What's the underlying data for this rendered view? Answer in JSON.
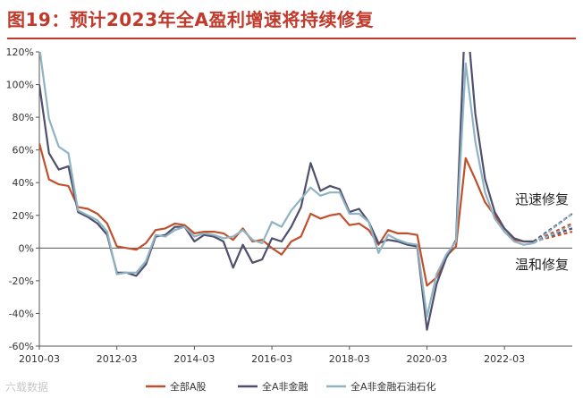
{
  "title": "图19：预计2023年全A盈利增速将持续修复",
  "watermark": "六载数据",
  "colors": {
    "title": "#c0392b",
    "s1": "#c0502b",
    "s2": "#4f4f6e",
    "s3": "#8fb3c3",
    "axis": "#555555"
  },
  "chart_data": {
    "type": "line",
    "x_tick_labels": [
      "2010-03",
      "2012-03",
      "2014-03",
      "2016-03",
      "2018-03",
      "2020-03",
      "2022-03"
    ],
    "y_tick_labels": [
      "120%",
      "100%",
      "80%",
      "60%",
      "40%",
      "20%",
      "0%",
      "-20%",
      "-40%",
      "-60%"
    ],
    "ylim": [
      -60,
      120
    ],
    "grid": false,
    "legend_position": "bottom",
    "x": [
      "2010-03",
      "2010-06",
      "2010-09",
      "2010-12",
      "2011-03",
      "2011-06",
      "2011-09",
      "2011-12",
      "2012-03",
      "2012-06",
      "2012-09",
      "2012-12",
      "2013-03",
      "2013-06",
      "2013-09",
      "2013-12",
      "2014-03",
      "2014-06",
      "2014-09",
      "2014-12",
      "2015-03",
      "2015-06",
      "2015-09",
      "2015-12",
      "2016-03",
      "2016-06",
      "2016-09",
      "2016-12",
      "2017-03",
      "2017-06",
      "2017-09",
      "2017-12",
      "2018-03",
      "2018-06",
      "2018-09",
      "2018-12",
      "2019-03",
      "2019-06",
      "2019-09",
      "2019-12",
      "2020-03",
      "2020-06",
      "2020-09",
      "2020-12",
      "2021-03",
      "2021-06",
      "2021-09",
      "2021-12",
      "2022-03",
      "2022-06",
      "2022-09",
      "2022-12"
    ],
    "series": [
      {
        "name": "全部A股",
        "color": "#c0502b",
        "values": [
          64,
          42,
          39,
          38,
          25,
          24,
          21,
          15,
          1,
          0,
          -1,
          3,
          11,
          12,
          15,
          14,
          9,
          10,
          10,
          9,
          5,
          12,
          4,
          5,
          0,
          -4,
          4,
          7,
          21,
          18,
          20,
          21,
          14,
          15,
          11,
          2,
          11,
          9,
          9,
          8,
          -23,
          -18,
          -5,
          1,
          55,
          42,
          28,
          20,
          10,
          5,
          4,
          4
        ]
      },
      {
        "name": "全A非金融",
        "color": "#4f4f6e",
        "values": [
          100,
          58,
          48,
          50,
          22,
          19,
          15,
          8,
          -15,
          -15,
          -17,
          -10,
          7,
          8,
          13,
          13,
          4,
          8,
          7,
          4,
          -12,
          2,
          -9,
          -7,
          6,
          4,
          13,
          25,
          52,
          35,
          38,
          36,
          22,
          24,
          16,
          3,
          5,
          4,
          2,
          1,
          -50,
          -22,
          -6,
          5,
          150,
          82,
          42,
          22,
          12,
          6,
          4,
          4
        ]
      },
      {
        "name": "全A非金融石油石化",
        "color": "#8fb3c3",
        "values": [
          123,
          79,
          62,
          58,
          23,
          20,
          17,
          10,
          -16,
          -15,
          -15,
          -8,
          8,
          7,
          11,
          13,
          7,
          9,
          8,
          6,
          7,
          11,
          5,
          3,
          16,
          13,
          23,
          30,
          37,
          32,
          34,
          34,
          21,
          21,
          16,
          -3,
          8,
          5,
          3,
          2,
          -42,
          -16,
          -4,
          4,
          113,
          65,
          34,
          18,
          10,
          4,
          2,
          3
        ]
      }
    ],
    "forecast": {
      "from": "2022-12",
      "to": "2023-12",
      "upper_label": "迅速修复",
      "lower_label": "温和修复",
      "upper": {
        "全部A股": 15,
        "全A非金融": 21,
        "全A非金融石油石化": 21
      },
      "lower": {
        "全部A股": 10,
        "全A非金融": 12,
        "全A非金融石油石化": 14
      }
    }
  }
}
